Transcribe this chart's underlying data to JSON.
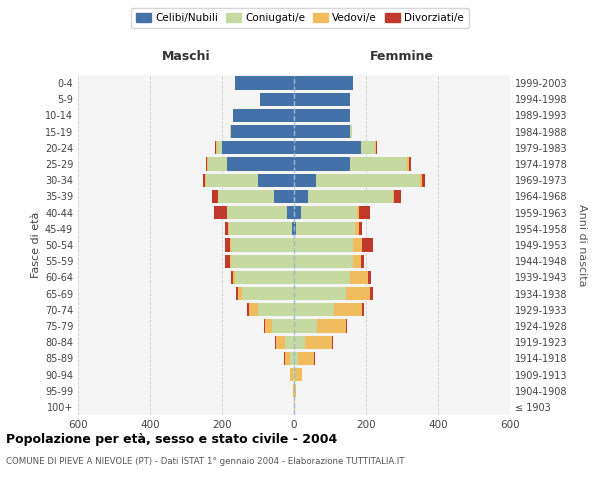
{
  "age_groups": [
    "100+",
    "95-99",
    "90-94",
    "85-89",
    "80-84",
    "75-79",
    "70-74",
    "65-69",
    "60-64",
    "55-59",
    "50-54",
    "45-49",
    "40-44",
    "35-39",
    "30-34",
    "25-29",
    "20-24",
    "15-19",
    "10-14",
    "5-9",
    "0-4"
  ],
  "birth_years": [
    "≤ 1903",
    "1904-1908",
    "1909-1913",
    "1914-1918",
    "1919-1923",
    "1924-1928",
    "1929-1933",
    "1934-1938",
    "1939-1943",
    "1944-1948",
    "1949-1953",
    "1954-1958",
    "1959-1963",
    "1964-1968",
    "1969-1973",
    "1974-1978",
    "1979-1983",
    "1984-1988",
    "1989-1993",
    "1994-1998",
    "1999-2003"
  ],
  "male_celibi": [
    0,
    0,
    0,
    0,
    0,
    0,
    0,
    0,
    0,
    0,
    0,
    5,
    20,
    55,
    100,
    185,
    200,
    175,
    170,
    95,
    165
  ],
  "male_coniugati": [
    0,
    0,
    3,
    10,
    25,
    60,
    100,
    145,
    165,
    175,
    175,
    175,
    165,
    155,
    145,
    55,
    15,
    3,
    0,
    0,
    0
  ],
  "male_vedovi": [
    0,
    2,
    8,
    15,
    25,
    20,
    25,
    10,
    5,
    3,
    3,
    2,
    2,
    2,
    2,
    2,
    2,
    0,
    0,
    0,
    0
  ],
  "male_divorziati": [
    0,
    0,
    0,
    2,
    2,
    2,
    5,
    5,
    5,
    15,
    15,
    10,
    35,
    15,
    5,
    2,
    2,
    0,
    0,
    0,
    0
  ],
  "female_nubili": [
    0,
    0,
    0,
    0,
    0,
    0,
    0,
    0,
    0,
    0,
    0,
    5,
    20,
    40,
    60,
    155,
    185,
    155,
    155,
    155,
    165
  ],
  "female_coniugate": [
    0,
    0,
    2,
    10,
    30,
    65,
    110,
    145,
    155,
    165,
    165,
    165,
    155,
    235,
    290,
    160,
    40,
    5,
    0,
    0,
    0
  ],
  "female_vedove": [
    2,
    5,
    20,
    45,
    75,
    80,
    80,
    65,
    50,
    20,
    25,
    10,
    5,
    3,
    5,
    5,
    3,
    0,
    0,
    0,
    0
  ],
  "female_divorziate": [
    0,
    0,
    0,
    2,
    3,
    2,
    5,
    10,
    8,
    10,
    30,
    10,
    30,
    20,
    10,
    5,
    2,
    0,
    0,
    0,
    0
  ],
  "color_celibi": "#4472a8",
  "color_coniugati": "#c5d9a0",
  "color_vedovi": "#f0bc5e",
  "color_divorziati": "#c0392b",
  "xlim": 600,
  "title": "Popolazione per età, sesso e stato civile - 2004",
  "subtitle": "COMUNE DI PIEVE A NIEVOLE (PT) - Dati ISTAT 1° gennaio 2004 - Elaborazione TUTTITALIA.IT",
  "ylabel_left": "Fasce di età",
  "ylabel_right": "Anni di nascita",
  "maschi_label": "Maschi",
  "femmine_label": "Femmine",
  "legend_labels": [
    "Celibi/Nubili",
    "Coniugati/e",
    "Vedovi/e",
    "Divorziati/e"
  ],
  "bg_color": "#f5f5f5",
  "grid_color": "#cccccc",
  "xticks": [
    -600,
    -400,
    -200,
    0,
    200,
    400,
    600
  ]
}
